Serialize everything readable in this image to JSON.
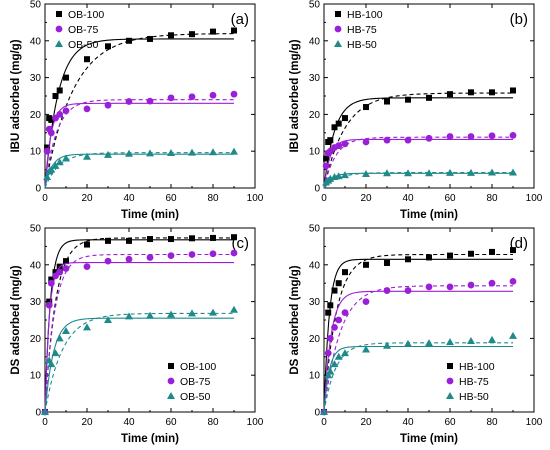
{
  "colors": {
    "black": "#000000",
    "purple": "#9a20d8",
    "teal": "#1f8a8a"
  },
  "chart_data": [
    {
      "panel": "(a)",
      "type": "scatter",
      "xlabel": "Time (min)",
      "ylabel": "IBU adsorbed (mg/g)",
      "xlim": [
        0,
        100
      ],
      "ylim": [
        0,
        50
      ],
      "xticks": [
        0,
        20,
        40,
        60,
        80,
        100
      ],
      "yticks": [
        0,
        10,
        20,
        30,
        40,
        50
      ],
      "legend": "top-left",
      "series": [
        {
          "name": "OB-100",
          "marker": "square",
          "color": "#000000",
          "x": [
            1,
            2,
            3,
            5,
            7,
            10,
            20,
            30,
            40,
            50,
            60,
            70,
            80,
            90
          ],
          "y": [
            11,
            19,
            18.5,
            25,
            26.5,
            30,
            35,
            38.5,
            40,
            40.5,
            41.5,
            41.8,
            42.5,
            42.8
          ],
          "fit_solid": [
            40.5,
            0.16
          ],
          "fit_dashed": [
            42.0,
            0.075
          ]
        },
        {
          "name": "OB-75",
          "marker": "circle",
          "color": "#9a20d8",
          "x": [
            1,
            2,
            3,
            5,
            7,
            10,
            20,
            30,
            40,
            50,
            60,
            70,
            80,
            90
          ],
          "y": [
            10,
            16,
            15,
            19,
            20,
            21,
            21.5,
            22.5,
            23.5,
            23.6,
            24.5,
            24.8,
            25.2,
            25.5
          ],
          "fit_solid": [
            23.0,
            0.35
          ],
          "fit_dashed": [
            24.0,
            0.18
          ]
        },
        {
          "name": "OB-50",
          "marker": "triangle",
          "color": "#1f8a8a",
          "x": [
            1,
            2,
            3,
            5,
            7,
            10,
            20,
            30,
            40,
            50,
            60,
            70,
            80,
            90
          ],
          "y": [
            3,
            4.5,
            5,
            6,
            7,
            8,
            8.5,
            9,
            9.3,
            9.4,
            9.5,
            9.6,
            9.7,
            9.9
          ],
          "fit_solid": [
            9.2,
            0.3
          ],
          "fit_dashed": [
            9.6,
            0.15
          ]
        }
      ]
    },
    {
      "panel": "(b)",
      "type": "scatter",
      "xlabel": "Time (min)",
      "ylabel": "IBU adsorbed (mg/g)",
      "xlim": [
        0,
        100
      ],
      "ylim": [
        0,
        50
      ],
      "xticks": [
        0,
        20,
        40,
        60,
        80,
        100
      ],
      "yticks": [
        0,
        10,
        20,
        30,
        40,
        50
      ],
      "legend": "top-left",
      "series": [
        {
          "name": "HB-100",
          "marker": "square",
          "color": "#000000",
          "x": [
            1,
            2,
            3,
            5,
            7,
            10,
            20,
            30,
            40,
            50,
            60,
            70,
            80,
            90
          ],
          "y": [
            8,
            12.5,
            13,
            16.5,
            17.5,
            19,
            22,
            23.5,
            24,
            24.5,
            25.5,
            26,
            26,
            26.5
          ],
          "fit_solid": [
            24.5,
            0.2
          ],
          "fit_dashed": [
            25.8,
            0.1
          ]
        },
        {
          "name": "HB-75",
          "marker": "circle",
          "color": "#9a20d8",
          "x": [
            1,
            2,
            3,
            5,
            7,
            10,
            20,
            30,
            40,
            50,
            60,
            70,
            80,
            90
          ],
          "y": [
            6,
            9.5,
            10,
            11,
            11.5,
            12,
            12.5,
            13,
            13,
            13.5,
            14,
            14,
            14.2,
            14.3
          ],
          "fit_solid": [
            13.2,
            0.35
          ],
          "fit_dashed": [
            13.8,
            0.18
          ]
        },
        {
          "name": "HB-50",
          "marker": "triangle",
          "color": "#1f8a8a",
          "x": [
            1,
            2,
            3,
            5,
            7,
            10,
            20,
            30,
            40,
            50,
            60,
            70,
            80,
            90
          ],
          "y": [
            1.5,
            2,
            2.5,
            3,
            3.2,
            3.5,
            3.8,
            4,
            4,
            4,
            4.1,
            4.1,
            4.2,
            4.2
          ],
          "fit_solid": [
            4.0,
            0.3
          ],
          "fit_dashed": [
            4.2,
            0.15
          ]
        }
      ]
    },
    {
      "panel": "(c)",
      "type": "scatter",
      "xlabel": "Time (min)",
      "ylabel": "DS adsorbed (mg/g)",
      "xlim": [
        0,
        100
      ],
      "ylim": [
        0,
        50
      ],
      "xticks": [
        0,
        20,
        40,
        60,
        80,
        100
      ],
      "yticks": [
        0,
        10,
        20,
        30,
        40,
        50
      ],
      "legend": "bottom-right",
      "series": [
        {
          "name": "OB-100",
          "marker": "square",
          "color": "#000000",
          "x": [
            0,
            2,
            3,
            5,
            7,
            10,
            20,
            30,
            40,
            50,
            60,
            70,
            80,
            90
          ],
          "y": [
            0,
            30,
            36,
            38,
            39.5,
            41,
            45.5,
            46.5,
            46.5,
            47,
            47,
            47.2,
            47.3,
            47.5
          ],
          "fit_solid": [
            46.8,
            0.4
          ],
          "fit_dashed": [
            47.3,
            0.2
          ]
        },
        {
          "name": "OB-75",
          "marker": "circle",
          "color": "#9a20d8",
          "x": [
            0,
            2,
            3,
            5,
            7,
            10,
            20,
            30,
            40,
            50,
            60,
            70,
            80,
            90
          ],
          "y": [
            0,
            29,
            35,
            37,
            38,
            39,
            39.5,
            41,
            41.5,
            42,
            42.5,
            42.8,
            43,
            43.2
          ],
          "fit_solid": [
            40.6,
            0.5
          ],
          "fit_dashed": [
            42.8,
            0.22
          ]
        },
        {
          "name": "OB-50",
          "marker": "triangle",
          "color": "#1f8a8a",
          "x": [
            0,
            2,
            3,
            5,
            7,
            10,
            20,
            30,
            40,
            50,
            60,
            70,
            80,
            90
          ],
          "y": [
            0,
            14,
            13,
            16,
            20,
            22,
            23,
            25,
            26,
            26.2,
            26.5,
            26.8,
            27,
            27.8
          ],
          "fit_solid": [
            25.5,
            0.25
          ],
          "fit_dashed": [
            26.8,
            0.12
          ]
        }
      ]
    },
    {
      "panel": "(d)",
      "type": "scatter",
      "xlabel": "Time (min)",
      "ylabel": "DS adsorbed (mg/g)",
      "xlim": [
        0,
        100
      ],
      "ylim": [
        0,
        50
      ],
      "xticks": [
        0,
        20,
        40,
        60,
        80,
        100
      ],
      "yticks": [
        0,
        10,
        20,
        30,
        40,
        50
      ],
      "legend": "bottom-right",
      "series": [
        {
          "name": "HB-100",
          "marker": "square",
          "color": "#000000",
          "x": [
            0,
            2,
            3,
            5,
            7,
            10,
            20,
            30,
            40,
            50,
            60,
            70,
            80,
            90
          ],
          "y": [
            0,
            27,
            29,
            33,
            35,
            38,
            40,
            40.5,
            41.5,
            42,
            42.5,
            43,
            43.5,
            44
          ],
          "fit_solid": [
            41.5,
            0.4
          ],
          "fit_dashed": [
            42.8,
            0.17
          ]
        },
        {
          "name": "HB-75",
          "marker": "circle",
          "color": "#9a20d8",
          "x": [
            0,
            2,
            3,
            5,
            7,
            10,
            20,
            30,
            40,
            50,
            60,
            70,
            80,
            90
          ],
          "y": [
            0,
            16,
            20,
            23,
            25,
            27,
            30,
            33,
            33,
            34,
            34,
            34.5,
            35,
            35.5
          ],
          "fit_solid": [
            32.8,
            0.3
          ],
          "fit_dashed": [
            34.3,
            0.13
          ]
        },
        {
          "name": "HB-50",
          "marker": "triangle",
          "color": "#1f8a8a",
          "x": [
            0,
            2,
            3,
            5,
            7,
            10,
            20,
            30,
            40,
            50,
            60,
            70,
            80,
            90
          ],
          "y": [
            0,
            10,
            11,
            13,
            15,
            16,
            17,
            18,
            18.5,
            18.7,
            19,
            19.3,
            19.6,
            20.7
          ],
          "fit_solid": [
            17.8,
            0.4
          ],
          "fit_dashed": [
            18.8,
            0.18
          ]
        }
      ]
    }
  ]
}
